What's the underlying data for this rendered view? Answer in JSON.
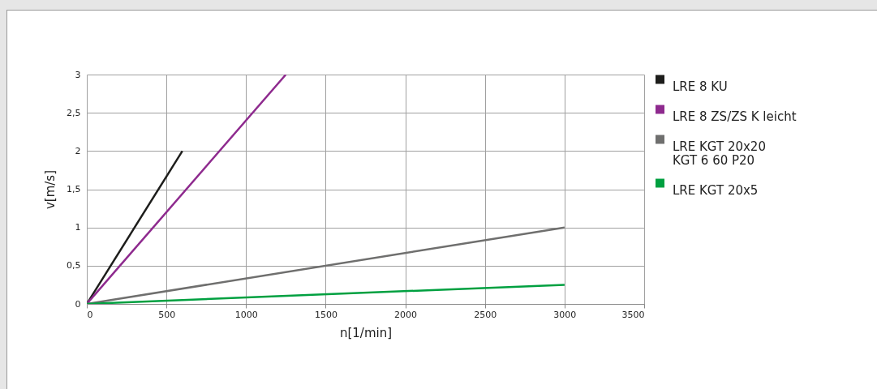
{
  "chart_data": {
    "type": "line",
    "xlabel": "n[1/min]",
    "ylabel": "v[m/s]",
    "xlim": [
      0,
      3500
    ],
    "xticks": [
      0,
      500,
      1000,
      1500,
      2000,
      2500,
      3000,
      3500
    ],
    "ylim": [
      0,
      3
    ],
    "yticks": [
      0,
      {
        "value": 0.5,
        "label": "0,5"
      },
      1,
      {
        "value": 1.5,
        "label": "1,5"
      },
      2,
      {
        "value": 2.5,
        "label": "2,5"
      },
      3
    ],
    "grid": true,
    "legend": "right",
    "marker": "none",
    "line_style": "solid",
    "series": [
      {
        "name": "LRE 8 KU",
        "color": "#1d1d1b",
        "x": [
          0,
          600
        ],
        "values": [
          0,
          2
        ]
      },
      {
        "name": "LRE 8 ZS/ZS K leicht",
        "color": "#8e2a8e",
        "x": [
          0,
          1250
        ],
        "values": [
          0,
          3
        ]
      },
      {
        "name": "LRE KGT 20x20\nKGT 6 60 P20",
        "color": "#6f6f6e",
        "x": [
          0,
          3000
        ],
        "values": [
          0,
          1
        ]
      },
      {
        "name": "LRE KGT 20x5",
        "color": "#00a040",
        "x": [
          0,
          3000
        ],
        "values": [
          0,
          0.25
        ]
      }
    ]
  }
}
